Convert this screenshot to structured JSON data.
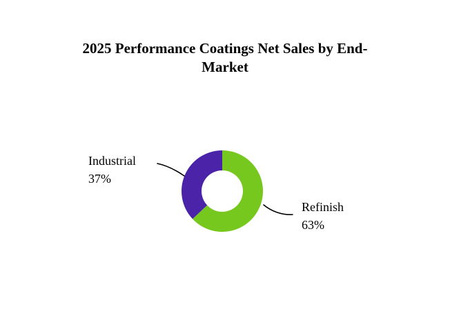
{
  "chart_data": {
    "type": "pie",
    "subtype": "donut",
    "title": "2025 Performance Coatings Net Sales by End-Market",
    "categories": [
      "Refinish",
      "Industrial"
    ],
    "values": [
      63,
      37
    ],
    "unit": "%",
    "start_angle_deg": 0,
    "direction": "clockwise",
    "inner_radius_ratio": 0.5,
    "legend_position": "none",
    "background_color": "#FFFFFF",
    "leader_line_color": "#000000",
    "slices": [
      {
        "label": "Refinish",
        "value": 63,
        "pct_label": "63%",
        "color": "#76C81E",
        "callout_side": "right"
      },
      {
        "label": "Industrial",
        "value": 37,
        "pct_label": "37%",
        "color": "#4B23A8",
        "callout_side": "left"
      }
    ]
  }
}
